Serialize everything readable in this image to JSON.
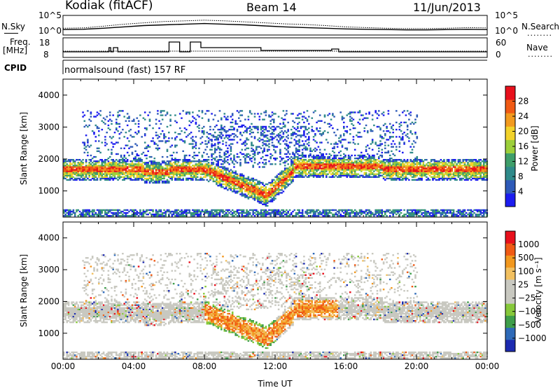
{
  "header": {
    "site": "Kodiak (fitACF)",
    "beam": "Beam 14",
    "date": "11/Jun/2013"
  },
  "aux_labels": {
    "nsky": "N.Sky",
    "freq": "Freq.",
    "mhz": "[MHz]",
    "cpid": "CPID",
    "nsearch": "N.Search",
    "nave": "Nave",
    "dots": "········",
    "noise_ticks_left": [
      "10^5",
      "10^0"
    ],
    "noise_ticks_right": [
      "10^5",
      "10^0"
    ],
    "freq_ticks": [
      "18",
      "8"
    ],
    "nave_ticks": [
      "60",
      "0"
    ]
  },
  "cpid_text": "normalsound (fast) 157 RF",
  "colors": {
    "power_scale": [
      "#1c1cf0",
      "#2e5ab8",
      "#2f8a8a",
      "#3e9e6a",
      "#9ccf3a",
      "#f2d22a",
      "#f29a1e",
      "#f05a14",
      "#e8101c"
    ],
    "velocity_scale": [
      "#e8101c",
      "#f05a14",
      "#f2981e",
      "#f2c060",
      "#c8c8c0",
      "#c8c8c0",
      "#86c83a",
      "#3e9e4a",
      "#2e6ab8",
      "#1c2ab0"
    ]
  },
  "chart_data": [
    {
      "type": "line",
      "name": "noise",
      "series": [
        {
          "name": "N.Sky",
          "values": [
            1.2,
            1.3,
            1.6,
            2.0,
            2.4,
            2.6,
            2.8,
            3.0,
            2.8,
            2.6,
            2.3,
            2.0,
            1.8,
            1.6,
            1.4,
            1.3,
            1.2,
            1.1,
            1.1,
            1.2,
            1.3,
            1.2
          ]
        },
        {
          "name": "N.Search",
          "values": [
            1.6,
            1.7,
            2.2,
            2.8,
            3.2,
            3.6,
            3.8,
            4.0,
            3.8,
            3.5,
            3.2,
            2.9,
            2.7,
            2.4,
            2.0,
            1.8,
            1.6,
            1.5,
            1.5,
            1.6,
            1.8,
            1.7
          ]
        }
      ],
      "yticks_left": [
        "10^5",
        "10^0"
      ],
      "yticks_right": [
        "10^5",
        "10^0"
      ]
    },
    {
      "type": "line",
      "name": "frequency_nave",
      "series": [
        {
          "name": "Freq",
          "times": [
            0,
            2.5,
            2.6,
            2.7,
            2.85,
            3.0,
            3.1,
            3.2,
            5.9,
            6.0,
            6.5,
            6.6,
            7.0,
            7.2,
            7.6,
            7.8,
            11.0,
            11.2,
            15.0,
            15.2,
            15.4,
            15.6,
            24.0
          ],
          "values": [
            11,
            11,
            14,
            11,
            14,
            14,
            11,
            11,
            11,
            18,
            18,
            11,
            11,
            18,
            18,
            14,
            14,
            12,
            12,
            13,
            13,
            11,
            11
          ]
        },
        {
          "name": "Nave",
          "values": [
            12,
            12,
            12,
            12,
            12
          ]
        }
      ],
      "yticks_left": [
        "18",
        "8"
      ],
      "yticks_right": [
        "60",
        "0"
      ]
    },
    {
      "type": "heatmap",
      "name": "power",
      "ylabel": "Slant Range [km]",
      "yticks": [
        "1000",
        "2000",
        "3000",
        "4000"
      ],
      "xticks": [
        "00:00",
        "04:00",
        "08:00",
        "12:00",
        "16:00",
        "20:00",
        "00:00"
      ],
      "colorbar": {
        "label": "Power [dB]",
        "ticks": [
          "28",
          "24",
          "20",
          "16",
          "12",
          "8",
          "4"
        ]
      },
      "xlim": [
        0,
        24
      ],
      "ylim": [
        180,
        4500
      ]
    },
    {
      "type": "heatmap",
      "name": "velocity",
      "ylabel": "Slant Range [km]",
      "yticks": [
        "1000",
        "2000",
        "3000",
        "4000"
      ],
      "xticks": [
        "00:00",
        "04:00",
        "08:00",
        "12:00",
        "16:00",
        "20:00",
        "00:00"
      ],
      "xlabel": "Time UT",
      "colorbar": {
        "label": "Velocity [m s⁻¹]",
        "ticks": [
          "1000",
          "500",
          "100",
          "25",
          "−25",
          "−100",
          "−500",
          "−1000"
        ]
      },
      "xlim": [
        0,
        24
      ],
      "ylim": [
        180,
        4500
      ]
    }
  ]
}
